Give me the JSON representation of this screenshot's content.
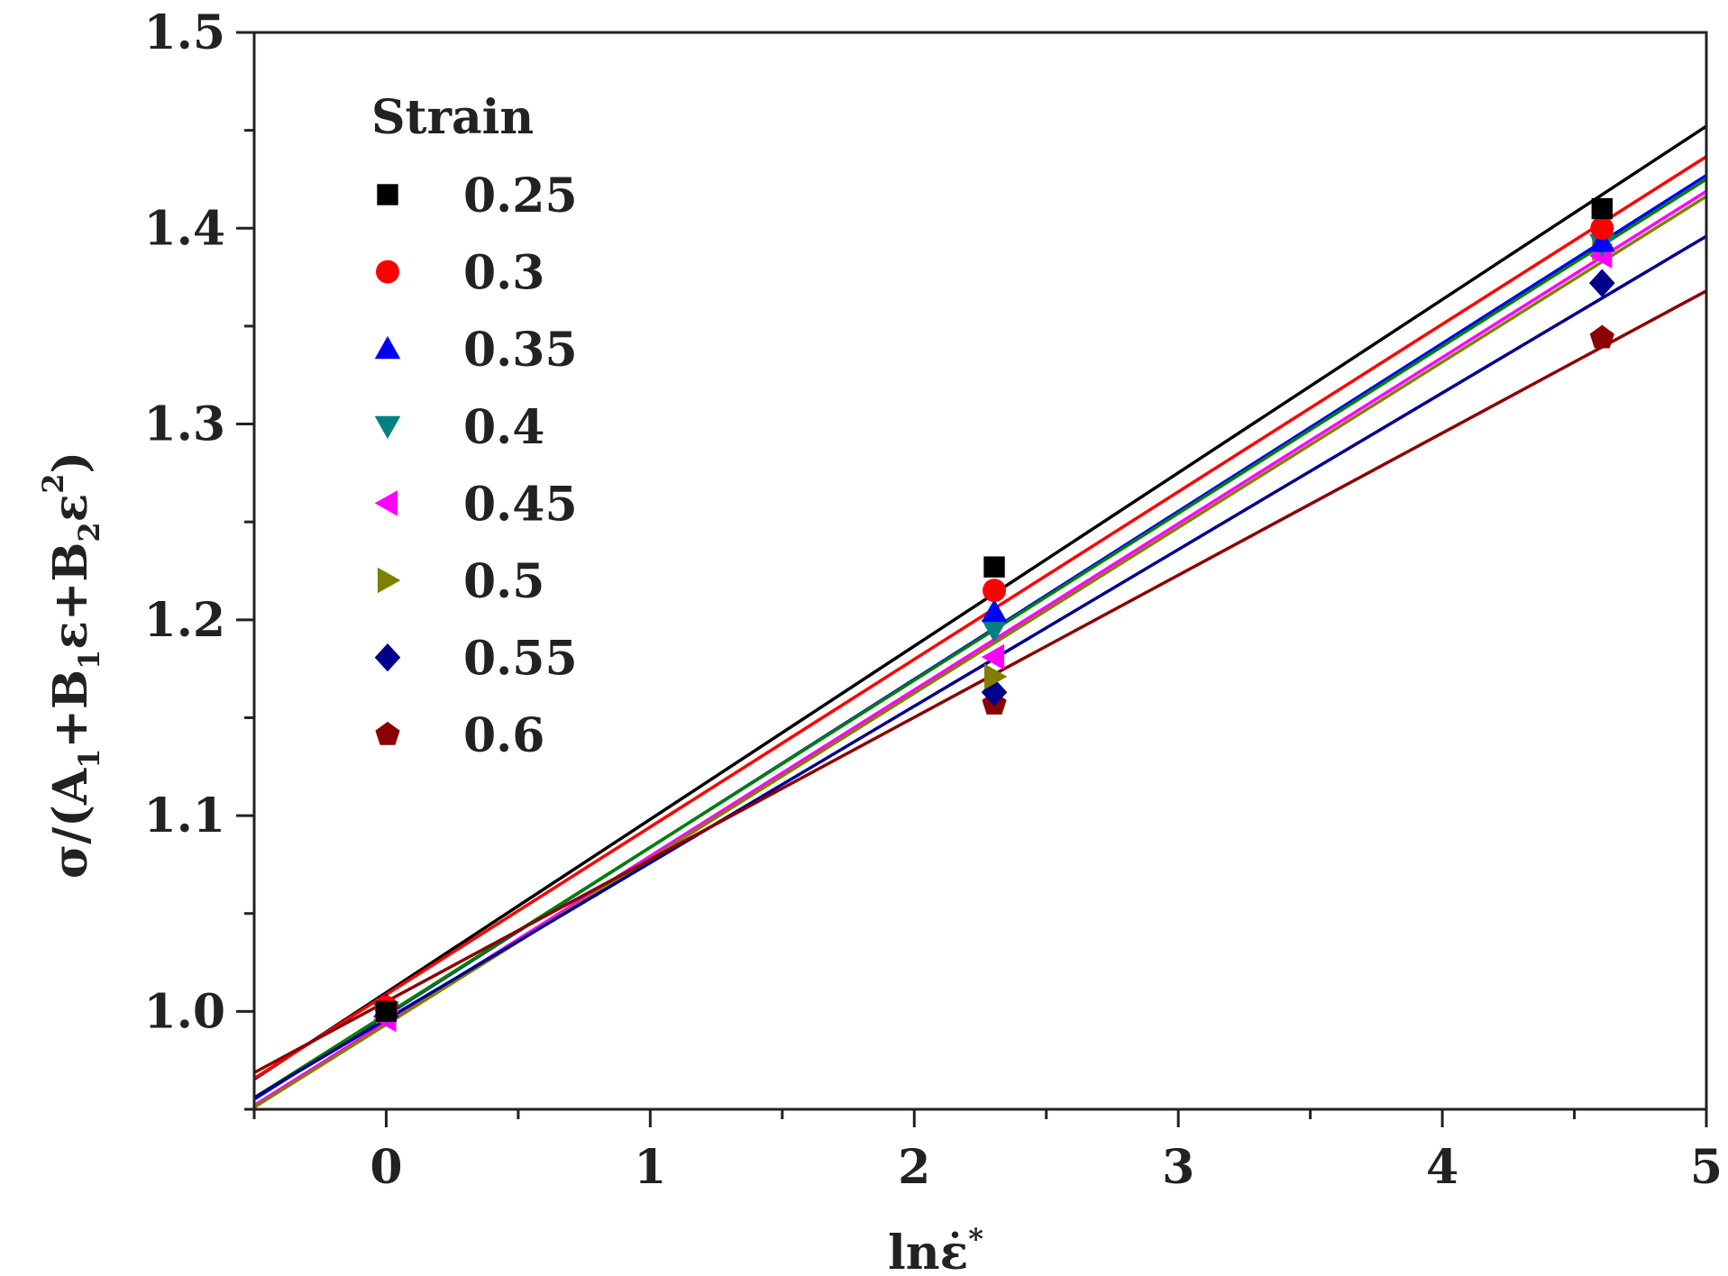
{
  "chart_data": {
    "type": "scatter",
    "title": "",
    "xlabel": "lnε̇*",
    "xlabel_base": "lnε̇",
    "xlabel_sup": "*",
    "ylabel": "σ/(A1+B1ε+B2ε2)",
    "ylabel_parts": {
      "sigma": "σ",
      "slash": "/(A",
      "sub_a": "1",
      "plus_b": "+B",
      "sub_b1": "1",
      "eps1": "ε+B",
      "sub_b2": "2",
      "eps2": "ε",
      "sup": "2",
      "close": ")"
    },
    "xlim": [
      -0.5,
      5
    ],
    "ylim": [
      0.95,
      1.5
    ],
    "xticks": [
      0,
      1,
      2,
      3,
      4,
      5
    ],
    "xtick_labels": [
      "0",
      "1",
      "2",
      "3",
      "4",
      "5"
    ],
    "yticks": [
      1.0,
      1.1,
      1.2,
      1.3,
      1.4,
      1.5
    ],
    "ytick_labels": [
      "1.0",
      "1.1",
      "1.2",
      "1.3",
      "1.4",
      "1.5"
    ],
    "legend_title": "Strain",
    "legend_position": "top-left",
    "grid": false,
    "series": [
      {
        "name": "0.25",
        "color": "#000000",
        "marker": "square",
        "x": [
          0,
          2.303,
          4.605
        ],
        "y": [
          1.0,
          1.227,
          1.41
        ],
        "fit": {
          "slope": 0.0885,
          "intercept": 1.0096
        }
      },
      {
        "name": "0.3",
        "color": "#ff0000",
        "marker": "circle",
        "x": [
          0,
          2.303,
          4.605
        ],
        "y": [
          1.002,
          1.215,
          1.4
        ],
        "fit": {
          "slope": 0.0856,
          "intercept": 1.0086
        }
      },
      {
        "name": "0.35",
        "color": "#0000ff",
        "marker": "triangle-up",
        "x": [
          0,
          2.303,
          4.605
        ],
        "y": [
          1.002,
          1.204,
          1.393
        ],
        "fit": {
          "slope": 0.0858,
          "intercept": 0.998
        }
      },
      {
        "name": "0.4",
        "color": "#008080",
        "marker": "triangle-down",
        "x": [
          0,
          2.303,
          4.605
        ],
        "y": [
          1.0,
          1.195,
          1.392
        ],
        "fit": {
          "slope": 0.0853,
          "intercept": 0.9985
        }
      },
      {
        "name": "0.45",
        "color": "#ff00ff",
        "marker": "triangle-left",
        "x": [
          0,
          2.303,
          4.605
        ],
        "y": [
          0.996,
          1.181,
          1.386
        ],
        "fit": {
          "slope": 0.0849,
          "intercept": 0.9944
        }
      },
      {
        "name": "0.5",
        "color": "#808000",
        "marker": "triangle-right",
        "x": [
          0,
          2.303,
          4.605
        ],
        "y": [
          1.0,
          1.171,
          1.39
        ],
        "fit": {
          "slope": 0.0846,
          "intercept": 0.9933
        }
      },
      {
        "name": "0.55",
        "color": "#00008b",
        "marker": "diamond",
        "x": [
          0,
          2.303,
          4.605
        ],
        "y": [
          1.002,
          1.163,
          1.372
        ],
        "fit": {
          "slope": 0.08,
          "intercept": 0.9959
        }
      },
      {
        "name": "0.6",
        "color": "#8b0000",
        "marker": "pentagon",
        "x": [
          0,
          2.303,
          4.605
        ],
        "y": [
          1.002,
          1.157,
          1.344
        ],
        "fit": {
          "slope": 0.0726,
          "intercept": 1.005
        }
      }
    ],
    "fit_line_colors": [
      "#000000",
      "#ff0000",
      "#0000ff",
      "#008000",
      "#ff00ff",
      "#808000",
      "#00008b",
      "#8b0000"
    ]
  }
}
